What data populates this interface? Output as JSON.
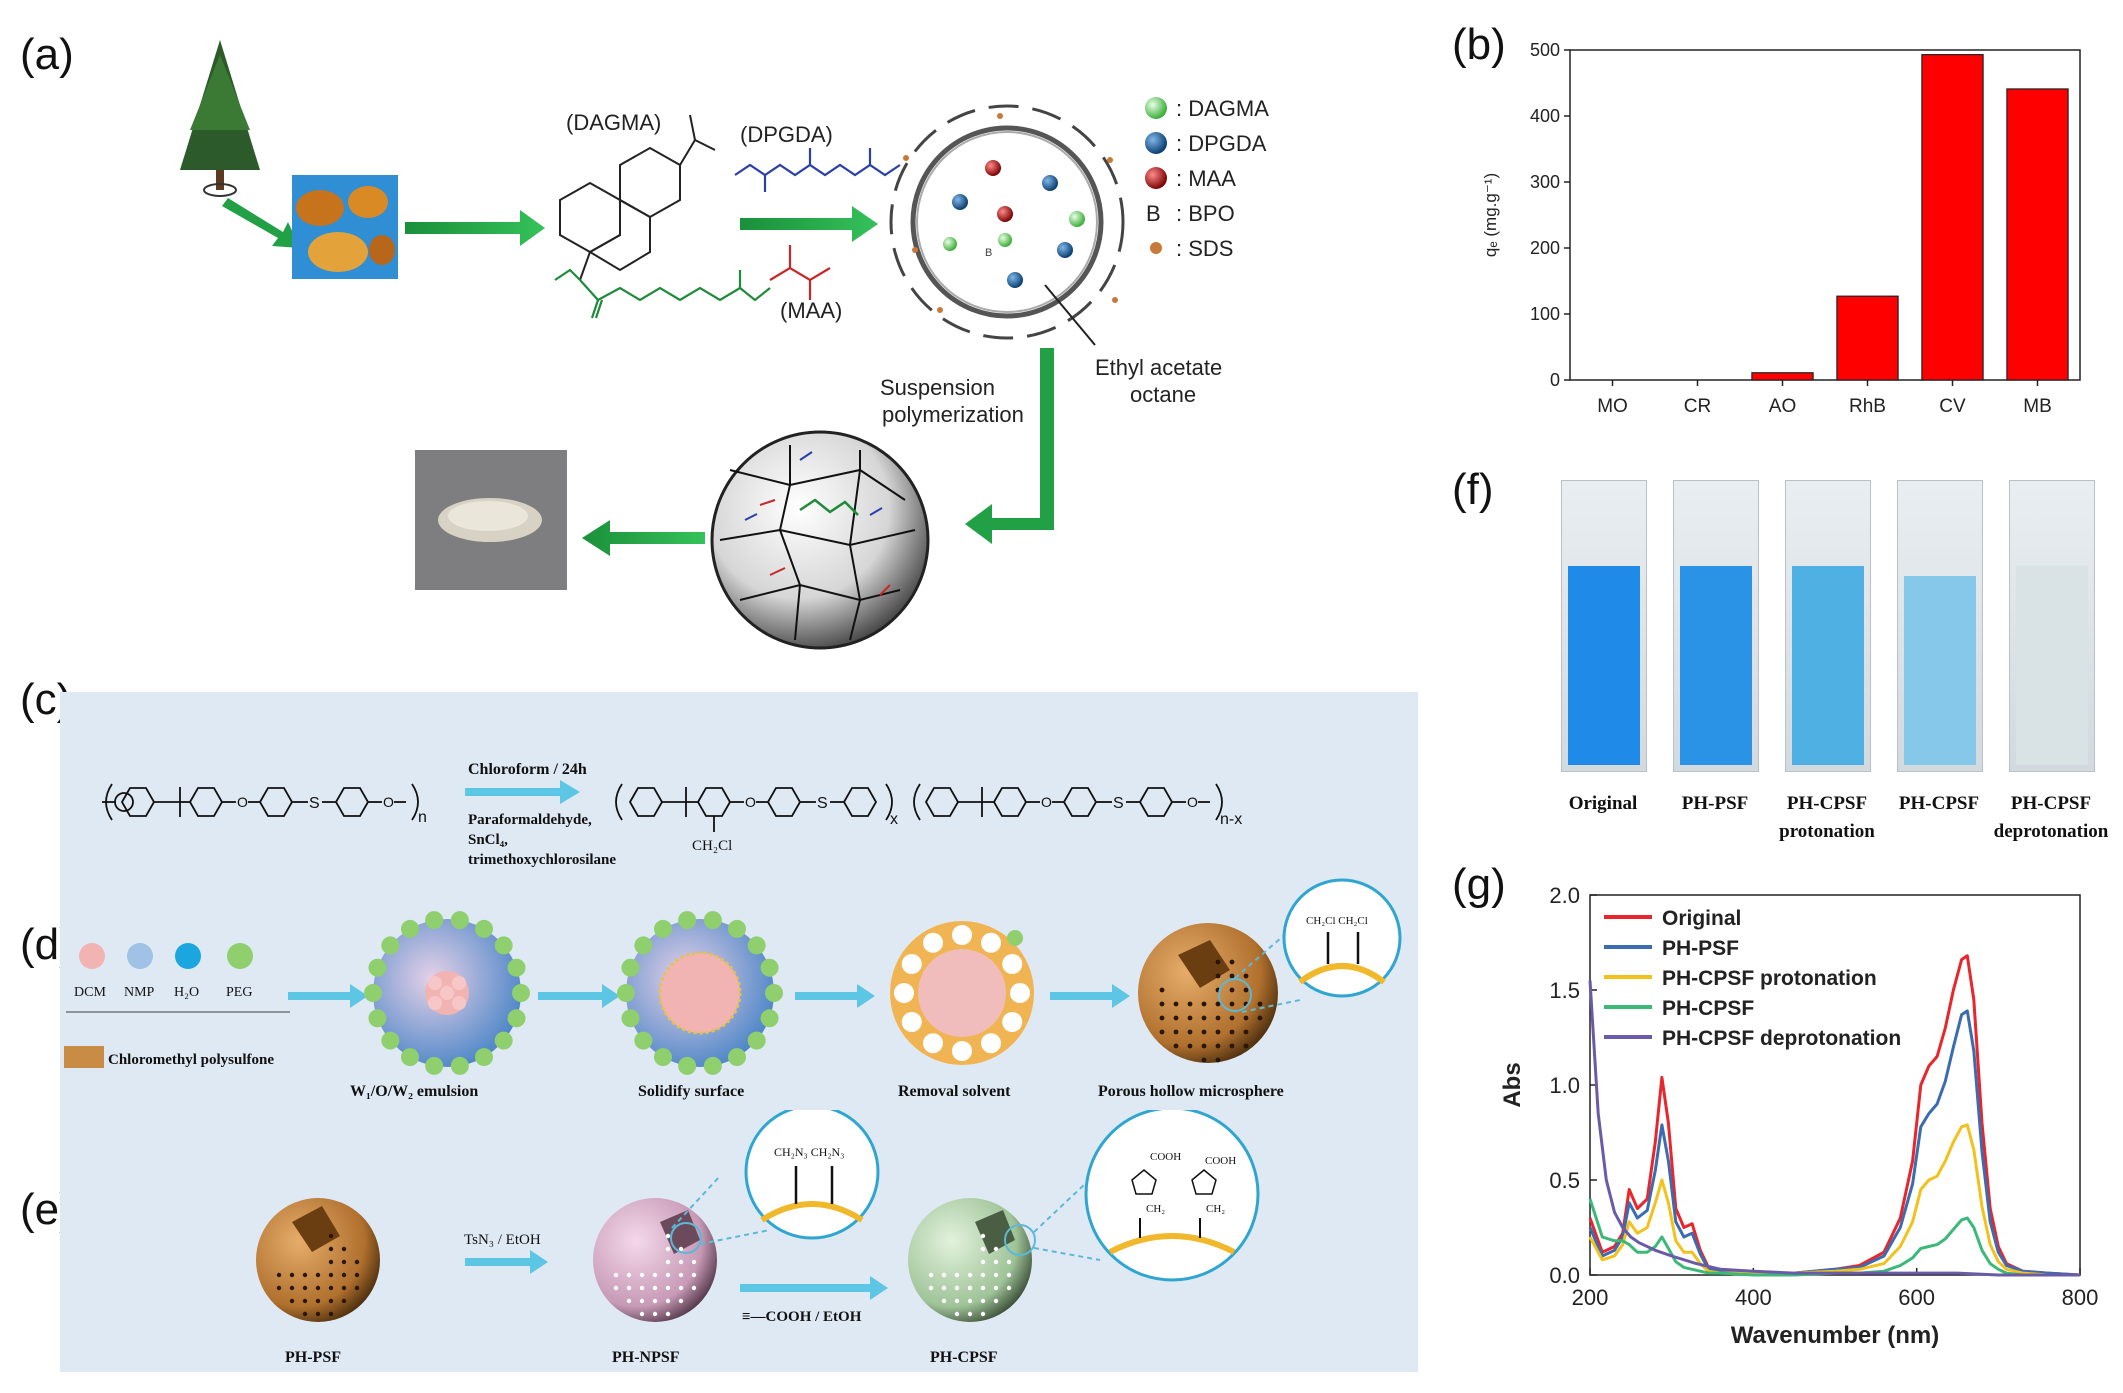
{
  "panel_labels": {
    "a": "(a)",
    "b": "(b)",
    "c": "(c)",
    "d": "(d)",
    "e": "(e)",
    "f": "(f)",
    "g": "(g)"
  },
  "panel_a": {
    "dagma_label": "(DAGMA)",
    "dpgda_label": "(DPGDA)",
    "maa_label": "(MAA)",
    "legend": [
      {
        "symbol": "green-sphere",
        "text": ": DAGMA",
        "color": "#7ed67a"
      },
      {
        "symbol": "blue-sphere",
        "text": ": DPGDA",
        "color": "#1f5f9e"
      },
      {
        "symbol": "red-sphere",
        "text": ": MAA",
        "color": "#b01818"
      },
      {
        "symbol": "letter-b",
        "letter": "B",
        "text": ": BPO",
        "color": "#222222"
      },
      {
        "symbol": "orange-dot",
        "text": ": SDS",
        "color": "#c97a3a"
      }
    ],
    "ethyl_label_1": "Ethyl acetate",
    "ethyl_label_2": "octane",
    "suspension_label_1": "Suspension",
    "suspension_label_2": "polymerization",
    "droplet_b": "B"
  },
  "panel_c": {
    "condition_top": "Chloroform / 24h",
    "condition_bottom": [
      "Paraformaldehyde,",
      "SnCl₄,",
      "trimethoxychlorosilane"
    ],
    "left_subscript": "n",
    "right_subscript_x": "x",
    "right_subscript_nx": "n-x",
    "sulfur": "S",
    "oxygen": "O",
    "ch2cl": "CH₂Cl"
  },
  "panel_d": {
    "reagents": [
      {
        "label": "DCM",
        "color": "#f2b3b3"
      },
      {
        "label": "NMP",
        "color": "#9fc2e6"
      },
      {
        "label": "H₂O",
        "color": "#1ba6e0"
      },
      {
        "label": "PEG",
        "color": "#8fcf6e"
      }
    ],
    "polymer_label": "Chloromethyl polysulfone",
    "steps": [
      "W₁/O/W₂ emulsion",
      "Solidify surface",
      "Removal solvent",
      "Porous hollow microsphere"
    ],
    "zoom_label": "CH₂Cl CH₂Cl"
  },
  "panel_e": {
    "sphere_labels": [
      "PH-PSF",
      "PH-NPSF",
      "PH-CPSF"
    ],
    "reaction_1": "TsN₃ / EtOH",
    "reaction_2": "≡—COOH / EtOH",
    "zoom_1_label": "CH₂N₃  CH₂N₃",
    "zoom_2_cooh": "COOH",
    "zoom_2_ch2": "CH₂"
  },
  "panel_f": {
    "cuvettes": [
      {
        "label_1": "Original",
        "label_2": "",
        "color": "#1f8ae8"
      },
      {
        "label_1": "PH-PSF",
        "label_2": "",
        "color": "#2a93e6"
      },
      {
        "label_1": "PH-CPSF",
        "label_2": "protonation",
        "color": "#4fb0e4"
      },
      {
        "label_1": "PH-CPSF",
        "label_2": "",
        "color": "#86c8ea"
      },
      {
        "label_1": "PH-CPSF",
        "label_2": "deprotonation",
        "color": "#d9e2e4"
      }
    ]
  },
  "chart_data": [
    {
      "id": "b",
      "type": "bar",
      "title": "",
      "xlabel": "",
      "ylabel": "qₑ (mg.g⁻¹)",
      "categories": [
        "MO",
        "CR",
        "AO",
        "RhB",
        "CV",
        "MB"
      ],
      "values": [
        0,
        0,
        11,
        127,
        493,
        441
      ],
      "ylim": [
        0,
        500
      ],
      "yticks": [
        0,
        100,
        200,
        300,
        400,
        500
      ],
      "bar_color": "#ff0000"
    },
    {
      "id": "g",
      "type": "line",
      "title": "",
      "xlabel": "Wavenumber (nm)",
      "ylabel": "Abs",
      "xlim": [
        200,
        800
      ],
      "ylim": [
        0,
        2.0
      ],
      "xticks": [
        200,
        400,
        600,
        800
      ],
      "yticks": [
        0.0,
        0.5,
        1.0,
        1.5,
        2.0
      ],
      "ytick_labels": [
        "0.0",
        "0.5",
        "1.0",
        "1.5",
        "2.0"
      ],
      "legend_position": "top-left",
      "series": [
        {
          "name": "Original",
          "color": "#e8262b",
          "x": [
            200,
            215,
            230,
            240,
            248,
            258,
            270,
            280,
            288,
            296,
            305,
            315,
            325,
            335,
            345,
            360,
            400,
            450,
            500,
            530,
            560,
            580,
            595,
            605,
            615,
            625,
            635,
            645,
            655,
            662,
            670,
            680,
            690,
            700,
            710,
            730,
            760,
            800
          ],
          "y": [
            0.3,
            0.12,
            0.15,
            0.22,
            0.45,
            0.35,
            0.4,
            0.7,
            1.04,
            0.8,
            0.35,
            0.25,
            0.27,
            0.13,
            0.04,
            0.02,
            0.01,
            0.01,
            0.03,
            0.05,
            0.12,
            0.3,
            0.6,
            1.0,
            1.1,
            1.15,
            1.3,
            1.5,
            1.66,
            1.68,
            1.45,
            0.8,
            0.35,
            0.15,
            0.06,
            0.02,
            0.01,
            0.0
          ]
        },
        {
          "name": "PH-PSF",
          "color": "#3b6bb0",
          "x": [
            200,
            215,
            230,
            240,
            248,
            258,
            270,
            280,
            288,
            296,
            305,
            315,
            325,
            335,
            345,
            360,
            400,
            450,
            500,
            530,
            560,
            580,
            595,
            605,
            615,
            625,
            635,
            645,
            655,
            662,
            670,
            680,
            690,
            700,
            710,
            730,
            760,
            800
          ],
          "y": [
            0.25,
            0.1,
            0.13,
            0.2,
            0.38,
            0.3,
            0.34,
            0.55,
            0.79,
            0.6,
            0.28,
            0.2,
            0.22,
            0.11,
            0.03,
            0.02,
            0.01,
            0.01,
            0.03,
            0.04,
            0.1,
            0.25,
            0.48,
            0.78,
            0.85,
            0.9,
            1.02,
            1.2,
            1.37,
            1.39,
            1.18,
            0.65,
            0.28,
            0.12,
            0.05,
            0.02,
            0.01,
            0.0
          ]
        },
        {
          "name": "PH-CPSF protonation",
          "color": "#f2c11c",
          "x": [
            200,
            215,
            230,
            240,
            248,
            258,
            270,
            280,
            288,
            296,
            305,
            315,
            325,
            335,
            345,
            360,
            400,
            450,
            500,
            530,
            560,
            580,
            595,
            605,
            615,
            625,
            635,
            645,
            655,
            662,
            670,
            680,
            690,
            700,
            710,
            730,
            760,
            800
          ],
          "y": [
            0.2,
            0.08,
            0.1,
            0.16,
            0.28,
            0.22,
            0.25,
            0.38,
            0.5,
            0.38,
            0.18,
            0.12,
            0.12,
            0.06,
            0.02,
            0.01,
            0.01,
            0.01,
            0.02,
            0.03,
            0.06,
            0.15,
            0.28,
            0.45,
            0.5,
            0.52,
            0.6,
            0.7,
            0.78,
            0.79,
            0.66,
            0.36,
            0.16,
            0.07,
            0.03,
            0.01,
            0.0,
            0.0
          ]
        },
        {
          "name": "PH-CPSF",
          "color": "#3cb878",
          "x": [
            200,
            215,
            230,
            240,
            248,
            258,
            270,
            280,
            288,
            296,
            305,
            315,
            325,
            335,
            345,
            360,
            400,
            450,
            500,
            530,
            560,
            580,
            595,
            605,
            615,
            625,
            635,
            645,
            655,
            662,
            670,
            680,
            690,
            700,
            710,
            730,
            760,
            800
          ],
          "y": [
            0.4,
            0.2,
            0.18,
            0.18,
            0.16,
            0.12,
            0.12,
            0.15,
            0.2,
            0.14,
            0.07,
            0.04,
            0.03,
            0.02,
            0.01,
            0.01,
            0.0,
            0.0,
            0.01,
            0.01,
            0.02,
            0.05,
            0.09,
            0.14,
            0.15,
            0.16,
            0.19,
            0.24,
            0.29,
            0.3,
            0.25,
            0.13,
            0.06,
            0.03,
            0.01,
            0.0,
            0.0,
            0.0
          ]
        },
        {
          "name": "PH-CPSF deprotonation",
          "color": "#6b5aa8",
          "x": [
            200,
            210,
            220,
            230,
            240,
            250,
            260,
            280,
            300,
            330,
            360,
            400,
            450,
            500,
            550,
            600,
            650,
            700,
            800
          ],
          "y": [
            1.55,
            0.85,
            0.5,
            0.33,
            0.25,
            0.2,
            0.17,
            0.13,
            0.1,
            0.06,
            0.03,
            0.02,
            0.01,
            0.01,
            0.01,
            0.01,
            0.01,
            0.0,
            0.0
          ]
        }
      ]
    }
  ]
}
